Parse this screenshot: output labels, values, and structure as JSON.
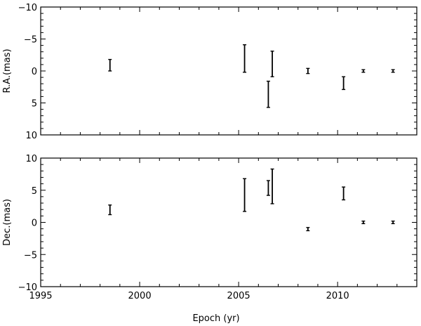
{
  "chart_data": [
    {
      "type": "scatter",
      "ylabel": "R.A.(mas)",
      "xlabel": "",
      "xlim": [
        1995,
        2014
      ],
      "ylim": [
        10,
        -10
      ],
      "y_inverted": true,
      "xticks": [
        1995,
        2000,
        2005,
        2010
      ],
      "xtick_labels": [
        "",
        "",
        "",
        ""
      ],
      "yticks": [
        -10,
        -5,
        0,
        5,
        10
      ],
      "ytick_labels": [
        "−10",
        "−5",
        "0",
        "5",
        "10"
      ],
      "grid": false,
      "legend": "none",
      "points": [
        {
          "x": 1998.5,
          "y_low": -1.8,
          "y_high": 0.0
        },
        {
          "x": 2005.3,
          "y_low": -4.1,
          "y_high": 0.2
        },
        {
          "x": 2006.5,
          "y_low": 1.6,
          "y_high": 5.7
        },
        {
          "x": 2006.7,
          "y_low": -3.1,
          "y_high": 0.9
        },
        {
          "x": 2008.5,
          "y_low": -0.4,
          "y_high": 0.4
        },
        {
          "x": 2010.3,
          "y_low": 0.9,
          "y_high": 2.9
        },
        {
          "x": 2011.3,
          "y_low": -0.2,
          "y_high": 0.2
        },
        {
          "x": 2012.8,
          "y_low": -0.2,
          "y_high": 0.2
        }
      ]
    },
    {
      "type": "scatter",
      "ylabel": "Dec.(mas)",
      "xlabel": "Epoch (yr)",
      "xlim": [
        1995,
        2014
      ],
      "ylim": [
        -10,
        10
      ],
      "y_inverted": false,
      "xticks": [
        1995,
        2000,
        2005,
        2010
      ],
      "xtick_labels": [
        "1995",
        "2000",
        "2005",
        "2010"
      ],
      "yticks": [
        -10,
        -5,
        0,
        5,
        10
      ],
      "ytick_labels": [
        "−10",
        "−5",
        "0",
        "5",
        "10"
      ],
      "grid": false,
      "legend": "none",
      "points": [
        {
          "x": 1998.5,
          "y_low": 1.2,
          "y_high": 2.7
        },
        {
          "x": 2005.3,
          "y_low": 1.7,
          "y_high": 6.8
        },
        {
          "x": 2006.5,
          "y_low": 4.2,
          "y_high": 6.5
        },
        {
          "x": 2006.7,
          "y_low": 2.9,
          "y_high": 8.3
        },
        {
          "x": 2008.5,
          "y_low": -1.3,
          "y_high": -0.8
        },
        {
          "x": 2010.3,
          "y_low": 3.5,
          "y_high": 5.5
        },
        {
          "x": 2011.3,
          "y_low": -0.2,
          "y_high": 0.2
        },
        {
          "x": 2012.8,
          "y_low": -0.2,
          "y_high": 0.2
        }
      ]
    }
  ]
}
